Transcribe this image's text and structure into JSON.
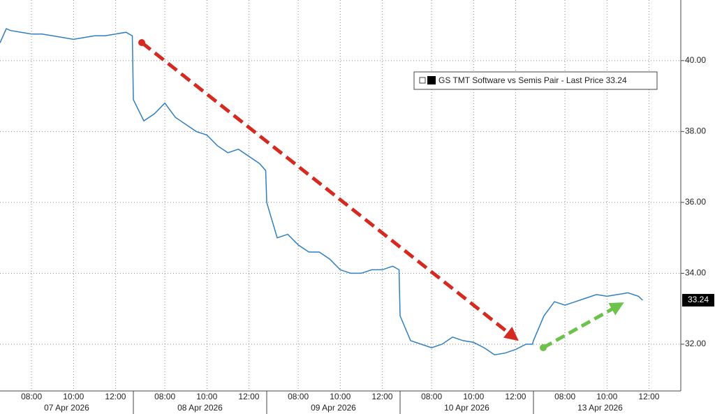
{
  "chart_data": {
    "type": "line",
    "legend": "GS TMT Software vs Semis Pair - Last Price 33.24",
    "last_price": 33.24,
    "color": "#2f7fc1",
    "grid": true,
    "ylim": [
      30.68,
      41.71
    ],
    "yticks": [
      {
        "value": 32,
        "label": "32.00"
      },
      {
        "value": 34,
        "label": "34.00"
      },
      {
        "value": 36,
        "label": "36.00"
      },
      {
        "value": 38,
        "label": "38.00"
      },
      {
        "value": 40,
        "label": "40.00"
      }
    ],
    "days": [
      {
        "label": "07 Apr 2026",
        "xlim": [
          6.5,
          12.85
        ],
        "xticks": [
          {
            "value": 8,
            "label": "08:00"
          },
          {
            "value": 10,
            "label": "10:00"
          },
          {
            "value": 12,
            "label": "12:00"
          }
        ],
        "x": [
          6.5,
          6.8,
          7.0,
          7.5,
          8.0,
          8.5,
          9.0,
          9.5,
          10.0,
          10.5,
          11.0,
          11.5,
          12.0,
          12.5,
          12.8
        ],
        "values": [
          40.5,
          40.9,
          40.85,
          40.8,
          40.75,
          40.75,
          40.7,
          40.65,
          40.6,
          40.65,
          40.7,
          40.7,
          40.75,
          40.8,
          40.7
        ]
      },
      {
        "label": "08 Apr 2026",
        "xlim": [
          6.5,
          12.85
        ],
        "xticks": [
          {
            "value": 8,
            "label": "08:00"
          },
          {
            "value": 10,
            "label": "10:00"
          },
          {
            "value": 12,
            "label": "12:00"
          }
        ],
        "x": [
          6.5,
          7.0,
          7.5,
          8.0,
          8.5,
          9.0,
          9.5,
          10.0,
          10.5,
          11.0,
          11.5,
          12.0,
          12.5,
          12.8
        ],
        "values": [
          38.9,
          38.3,
          38.5,
          38.8,
          38.4,
          38.2,
          38.0,
          37.9,
          37.6,
          37.4,
          37.5,
          37.3,
          37.1,
          36.9
        ]
      },
      {
        "label": "09 Apr 2026",
        "xlim": [
          6.5,
          12.85
        ],
        "xticks": [
          {
            "value": 8,
            "label": "08:00"
          },
          {
            "value": 10,
            "label": "10:00"
          },
          {
            "value": 12,
            "label": "12:00"
          }
        ],
        "x": [
          6.5,
          7.0,
          7.5,
          8.0,
          8.5,
          9.0,
          9.5,
          10.0,
          10.5,
          11.0,
          11.5,
          12.0,
          12.5,
          12.8
        ],
        "values": [
          36.0,
          35.0,
          35.1,
          34.8,
          34.6,
          34.6,
          34.4,
          34.1,
          34.0,
          34.0,
          34.1,
          34.1,
          34.2,
          34.1
        ]
      },
      {
        "label": "10 Apr 2026",
        "xlim": [
          6.5,
          12.85
        ],
        "xticks": [
          {
            "value": 8,
            "label": "08:00"
          },
          {
            "value": 10,
            "label": "10:00"
          },
          {
            "value": 12,
            "label": "12:00"
          }
        ],
        "x": [
          6.5,
          7.0,
          7.5,
          8.0,
          8.5,
          9.0,
          9.5,
          10.0,
          10.5,
          11.0,
          11.5,
          12.0,
          12.5,
          12.8
        ],
        "values": [
          32.8,
          32.1,
          32.0,
          31.9,
          32.0,
          32.2,
          32.1,
          32.05,
          31.9,
          31.7,
          31.75,
          31.85,
          32.0,
          32.0
        ]
      },
      {
        "label": "13 Apr 2026",
        "xlim": [
          6.5,
          12.85
        ],
        "xticks": [
          {
            "value": 8,
            "label": "08:00"
          },
          {
            "value": 10,
            "label": "10:00"
          },
          {
            "value": 12,
            "label": "12:00"
          }
        ],
        "x": [
          6.5,
          7.0,
          7.5,
          8.0,
          8.5,
          9.0,
          9.5,
          10.0,
          10.5,
          11.0,
          11.5,
          11.7
        ],
        "values": [
          32.1,
          32.8,
          33.2,
          33.1,
          33.2,
          33.3,
          33.4,
          33.35,
          33.4,
          33.45,
          33.35,
          33.24
        ]
      }
    ]
  }
}
